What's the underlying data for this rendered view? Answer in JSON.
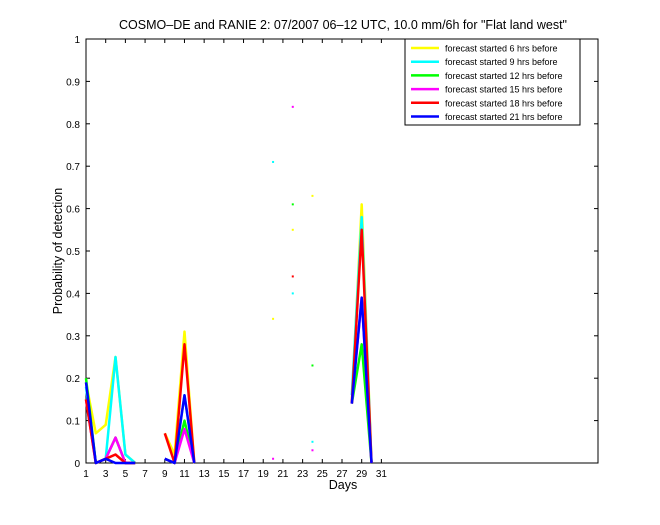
{
  "chart_data": {
    "type": "line",
    "title": "COSMO–DE and RANIE 2: 07/2007 06–12 UTC, 10.0 mm/6h for \"Flat land west\"",
    "xlabel": "Days",
    "ylabel": "Probability of detection",
    "xlim": [
      1,
      53
    ],
    "ylim": [
      0,
      1
    ],
    "xticks": [
      1,
      3,
      5,
      7,
      9,
      11,
      13,
      15,
      17,
      19,
      21,
      23,
      25,
      27,
      29,
      31
    ],
    "yticks": [
      0,
      0.1,
      0.2,
      0.3,
      0.4,
      0.5,
      0.6,
      0.7,
      0.8,
      0.9,
      1
    ],
    "ytick_labels": [
      "0",
      "0.1",
      "0.2",
      "0.3",
      "0.4",
      "0.5",
      "0.6",
      "0.7",
      "0.8",
      "0.9",
      "1"
    ],
    "grid": false,
    "legend_position": "top-right",
    "series": [
      {
        "name": "forecast started 6 hrs before",
        "color": "#ffff00",
        "segments": [
          [
            [
              1,
              0.19
            ],
            [
              2,
              0.07
            ],
            [
              3,
              0.09
            ],
            [
              4,
              0.25
            ],
            [
              5,
              0.02
            ],
            [
              6,
              0
            ]
          ],
          [
            [
              9,
              0.07
            ],
            [
              10,
              0.02
            ],
            [
              11,
              0.31
            ],
            [
              12,
              0
            ]
          ],
          [
            [
              28,
              0.14
            ],
            [
              29,
              0.61
            ],
            [
              30,
              0
            ]
          ]
        ],
        "points": [
          [
            20,
            0.34
          ],
          [
            22,
            0.55
          ],
          [
            24,
            0.63
          ]
        ]
      },
      {
        "name": "forecast started 9 hrs before",
        "color": "#00ffff",
        "segments": [
          [
            [
              1,
              0.18
            ],
            [
              2,
              0
            ],
            [
              3,
              0.01
            ],
            [
              4,
              0.25
            ],
            [
              5,
              0.02
            ],
            [
              6,
              0
            ]
          ],
          [
            [
              9,
              0.01
            ],
            [
              10,
              0
            ],
            [
              11,
              0.16
            ],
            [
              12,
              0
            ]
          ],
          [
            [
              28,
              0.16
            ],
            [
              29,
              0.58
            ],
            [
              30,
              0
            ]
          ]
        ],
        "points": [
          [
            20,
            0.71
          ],
          [
            22,
            0.4
          ],
          [
            24,
            0.05
          ]
        ]
      },
      {
        "name": "forecast started 12 hrs before",
        "color": "#00ff00",
        "segments": [
          [
            [
              1,
              0.2
            ],
            [
              2,
              0
            ],
            [
              3,
              0.01
            ],
            [
              4,
              0.06
            ],
            [
              5,
              0
            ],
            [
              6,
              0
            ]
          ],
          [
            [
              9,
              0.01
            ],
            [
              10,
              0
            ],
            [
              11,
              0.1
            ],
            [
              12,
              0
            ]
          ],
          [
            [
              28,
              0.14
            ],
            [
              29,
              0.28
            ],
            [
              30,
              0
            ]
          ]
        ],
        "points": [
          [
            22,
            0.61
          ],
          [
            24,
            0.23
          ]
        ]
      },
      {
        "name": "forecast started 15 hrs before",
        "color": "#ff00ff",
        "segments": [
          [
            [
              1,
              0.15
            ],
            [
              2,
              0
            ],
            [
              3,
              0.01
            ],
            [
              4,
              0.06
            ],
            [
              5,
              0
            ],
            [
              6,
              0
            ]
          ],
          [
            [
              9,
              0.01
            ],
            [
              10,
              0
            ],
            [
              11,
              0.08
            ],
            [
              12,
              0
            ]
          ],
          [
            [
              28,
              0.14
            ],
            [
              29,
              0.39
            ],
            [
              30,
              0
            ]
          ]
        ],
        "points": [
          [
            20,
            0.01
          ],
          [
            22,
            0.84
          ],
          [
            24,
            0.03
          ]
        ]
      },
      {
        "name": "forecast started 18 hrs before",
        "color": "#ff0000",
        "segments": [
          [
            [
              1,
              0.15
            ],
            [
              2,
              0
            ],
            [
              3,
              0.01
            ],
            [
              4,
              0.02
            ],
            [
              5,
              0
            ],
            [
              6,
              0
            ]
          ],
          [
            [
              9,
              0.07
            ],
            [
              10,
              0
            ],
            [
              11,
              0.28
            ],
            [
              12,
              0
            ]
          ],
          [
            [
              28,
              0.14
            ],
            [
              29,
              0.55
            ],
            [
              30,
              0
            ]
          ]
        ],
        "points": [
          [
            22,
            0.44
          ]
        ]
      },
      {
        "name": "forecast started 21 hrs before",
        "color": "#0000ff",
        "segments": [
          [
            [
              1,
              0.19
            ],
            [
              2,
              0
            ],
            [
              3,
              0.01
            ],
            [
              4,
              0
            ],
            [
              5,
              0
            ],
            [
              6,
              0
            ]
          ],
          [
            [
              9,
              0.01
            ],
            [
              10,
              0
            ],
            [
              11,
              0.16
            ],
            [
              12,
              0
            ]
          ],
          [
            [
              28,
              0.14
            ],
            [
              29,
              0.39
            ],
            [
              30,
              0
            ]
          ]
        ],
        "points": []
      }
    ]
  }
}
